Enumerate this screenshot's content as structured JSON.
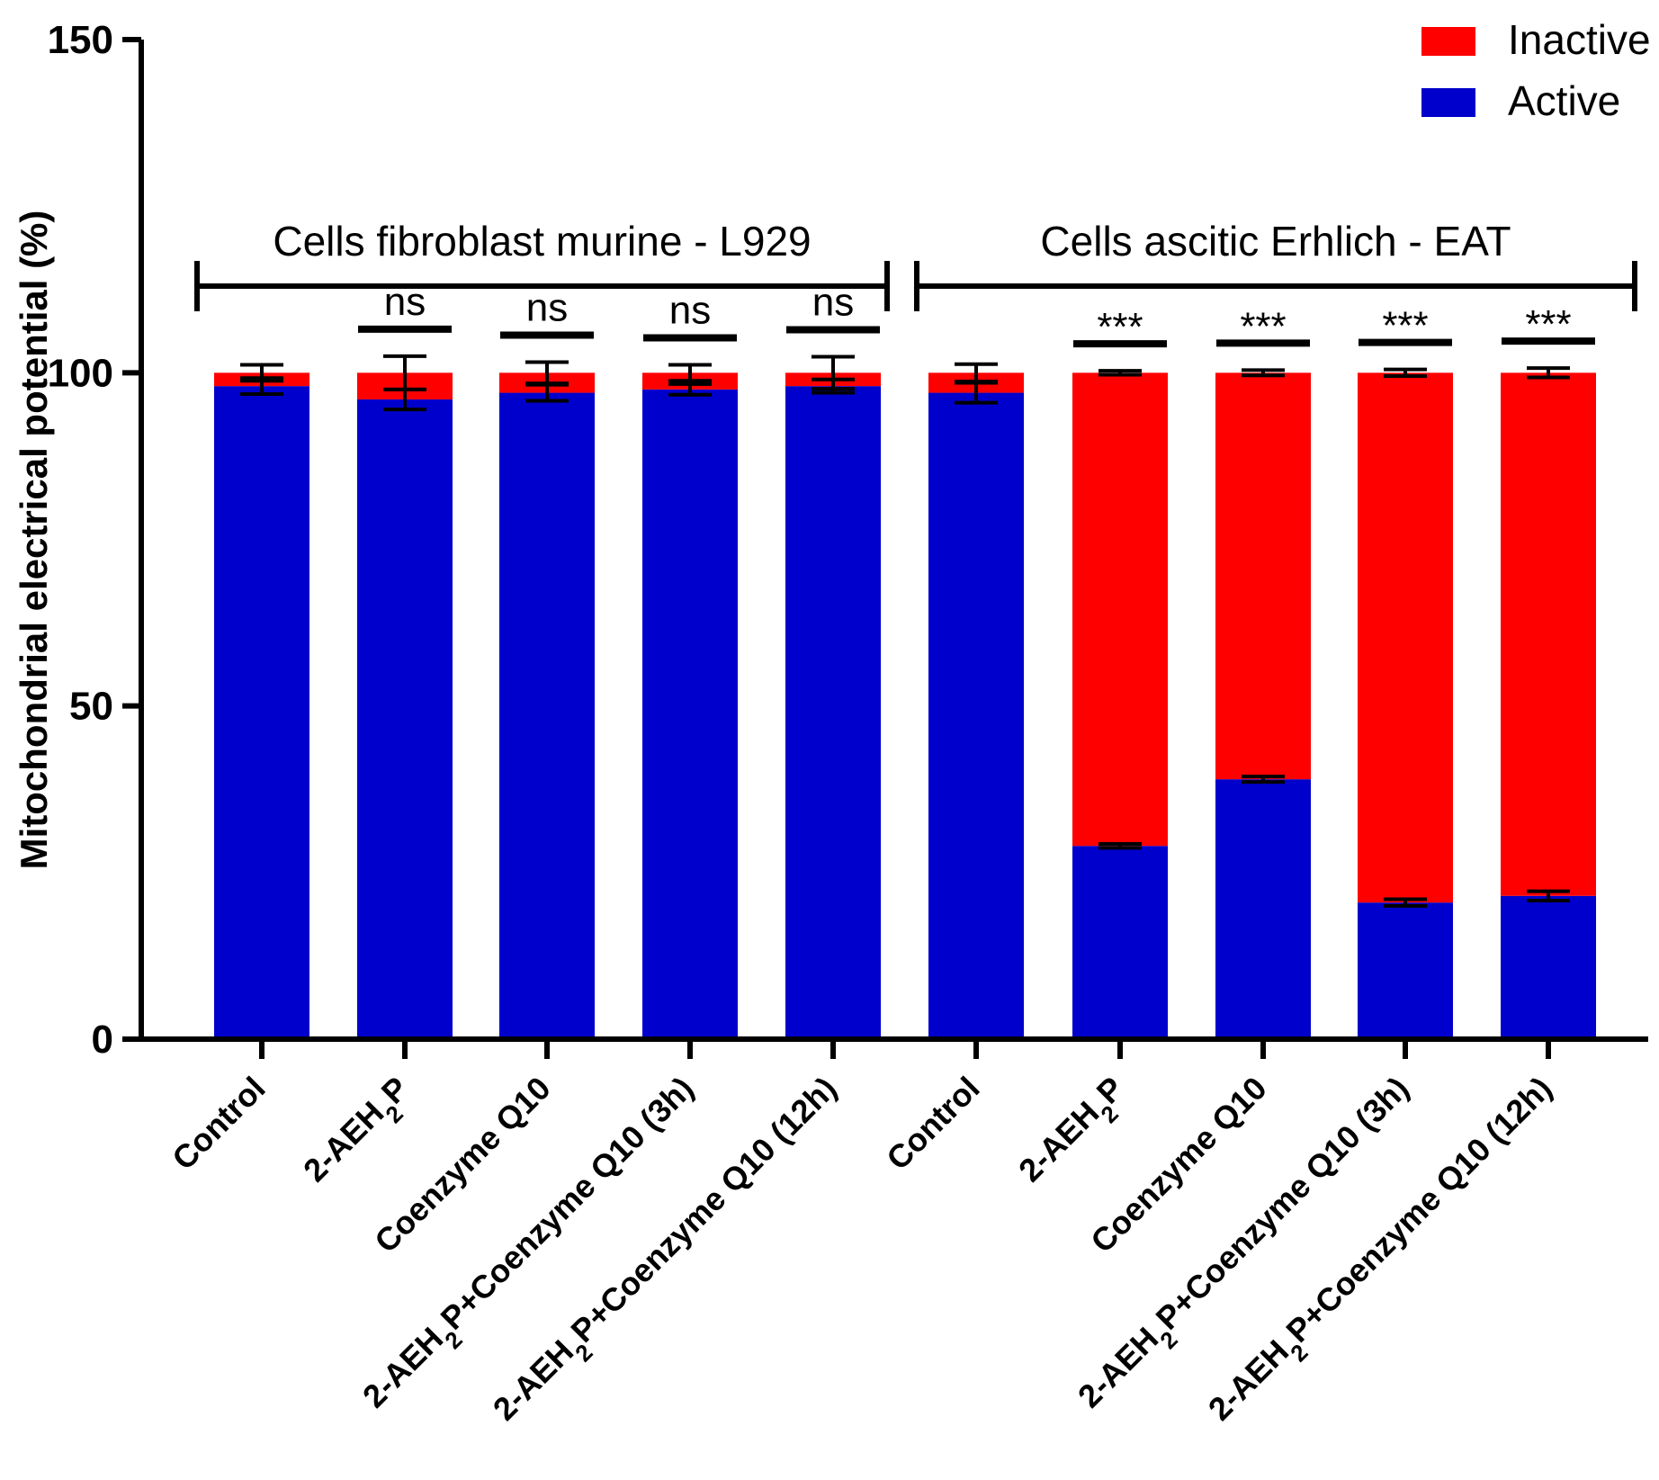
{
  "chart_data": {
    "type": "bar",
    "stacked": true,
    "ylabel": "Mitochondrial electrical potential (%)",
    "ylim": [
      0,
      150
    ],
    "yticks": [
      0,
      50,
      100,
      150
    ],
    "categories": [
      {
        "pre": "Control",
        "sub": "",
        "post": ""
      },
      {
        "pre": "2-AEH",
        "sub": "2",
        "post": "P"
      },
      {
        "pre": "Coenzyme Q10",
        "sub": "",
        "post": ""
      },
      {
        "pre": "2-AEH",
        "sub": "2",
        "post": "P+Coenzyme Q10 (3h)"
      },
      {
        "pre": "2-AEH",
        "sub": "2",
        "post": "P+Coenzyme Q10 (12h)"
      },
      {
        "pre": "Control",
        "sub": "",
        "post": ""
      },
      {
        "pre": "2-AEH",
        "sub": "2",
        "post": "P"
      },
      {
        "pre": "Coenzyme Q10",
        "sub": "",
        "post": ""
      },
      {
        "pre": "2-AEH",
        "sub": "2",
        "post": "P+Coenzyme Q10 (3h)"
      },
      {
        "pre": "2-AEH",
        "sub": "2",
        "post": "P+Coenzyme Q10 (12h)"
      }
    ],
    "series": [
      {
        "name": "Active",
        "color": "#0000CC",
        "values": [
          98,
          96,
          97,
          97.5,
          98,
          97,
          29,
          39,
          20.5,
          21.5
        ],
        "errors": [
          1.2,
          1.5,
          1.2,
          0.8,
          1.0,
          1.5,
          0.3,
          0.4,
          0.5,
          0.7
        ]
      },
      {
        "name": "Inactive",
        "color": "#FF0000",
        "values": [
          2,
          4,
          3,
          2.5,
          2,
          3,
          71,
          61,
          79.5,
          78.5
        ],
        "errors": [
          1.2,
          2.5,
          1.6,
          1.2,
          2.4,
          1.3,
          0.3,
          0.4,
          0.5,
          0.7
        ]
      }
    ],
    "groups": [
      {
        "label": "Cells fibroblast murine - L929",
        "from": 0,
        "to": 4
      },
      {
        "label": "Cells ascitic Erhlich - EAT",
        "from": 5,
        "to": 9
      }
    ],
    "significance": [
      "",
      "ns",
      "ns",
      "ns",
      "ns",
      "",
      "***",
      "***",
      "***",
      "***"
    ],
    "legend": [
      {
        "label": "Inactive",
        "color": "#FF0000"
      },
      {
        "label": "Active",
        "color": "#0000CC"
      }
    ],
    "legend_position": "top-right"
  }
}
